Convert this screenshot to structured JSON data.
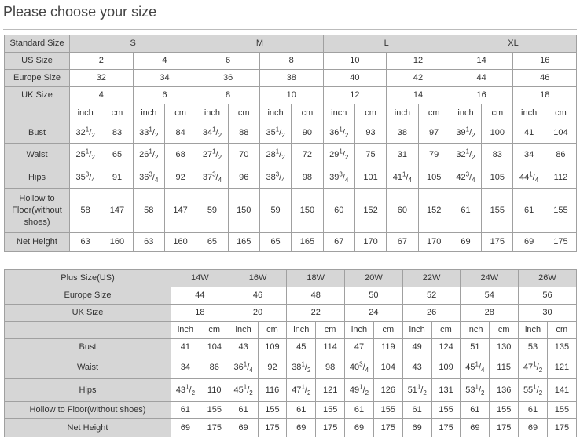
{
  "title": "Please choose your size",
  "table1": {
    "header": {
      "label": "Standard Size",
      "sizes": [
        "S",
        "M",
        "L",
        "XL"
      ]
    },
    "size_rows": [
      {
        "label": "US Size",
        "values": [
          "2",
          "4",
          "6",
          "8",
          "10",
          "12",
          "14",
          "16"
        ]
      },
      {
        "label": "Europe Size",
        "values": [
          "32",
          "34",
          "36",
          "38",
          "40",
          "42",
          "44",
          "46"
        ]
      },
      {
        "label": "UK Size",
        "values": [
          "4",
          "6",
          "8",
          "10",
          "12",
          "14",
          "16",
          "18"
        ]
      }
    ],
    "units": [
      "inch",
      "cm",
      "inch",
      "cm",
      "inch",
      "cm",
      "inch",
      "cm",
      "inch",
      "cm",
      "inch",
      "cm",
      "inch",
      "cm",
      "inch",
      "cm"
    ],
    "measure_rows": [
      {
        "label": "Bust",
        "cells": [
          [
            "32",
            "1",
            "/",
            "2"
          ],
          "83",
          [
            "33",
            "1",
            "/",
            "2"
          ],
          "84",
          [
            "34",
            "1",
            "/",
            "2"
          ],
          "88",
          [
            "35",
            "1",
            "/",
            "2"
          ],
          "90",
          [
            "36",
            "1",
            "/",
            "2"
          ],
          "93",
          "38",
          "97",
          [
            "39",
            "1",
            "/",
            "2"
          ],
          "100",
          "41",
          "104"
        ]
      },
      {
        "label": "Waist",
        "cells": [
          [
            "25",
            "1",
            "/",
            "2"
          ],
          "65",
          [
            "26",
            "1",
            "/",
            "2"
          ],
          "68",
          [
            "27",
            "1",
            "/",
            "2"
          ],
          "70",
          [
            "28",
            "1",
            "/",
            "2"
          ],
          "72",
          [
            "29",
            "1",
            "/",
            "2"
          ],
          "75",
          "31",
          "79",
          [
            "32",
            "1",
            "/",
            "2"
          ],
          "83",
          "34",
          "86"
        ]
      },
      {
        "label": "Hips",
        "cells": [
          [
            "35",
            "3",
            "/",
            "4"
          ],
          "91",
          [
            "36",
            "3",
            "/",
            "4"
          ],
          "92",
          [
            "37",
            "3",
            "/",
            "4"
          ],
          "96",
          [
            "38",
            "3",
            "/",
            "4"
          ],
          "98",
          [
            "39",
            "3",
            "/",
            "4"
          ],
          "101",
          [
            "41",
            "1",
            "/",
            "4"
          ],
          "105",
          [
            "42",
            "3",
            "/",
            "4"
          ],
          "105",
          [
            "44",
            "1",
            "/",
            "4"
          ],
          "112"
        ]
      },
      {
        "label": "Hollow to Floor(without shoes)",
        "cells": [
          "58",
          "147",
          "58",
          "147",
          "59",
          "150",
          "59",
          "150",
          "60",
          "152",
          "60",
          "152",
          "61",
          "155",
          "61",
          "155"
        ]
      },
      {
        "label": "Net Height",
        "cells": [
          "63",
          "160",
          "63",
          "160",
          "65",
          "165",
          "65",
          "165",
          "67",
          "170",
          "67",
          "170",
          "69",
          "175",
          "69",
          "175"
        ]
      }
    ]
  },
  "table2": {
    "header": {
      "label": "Plus Size(US)",
      "sizes": [
        "14W",
        "16W",
        "18W",
        "20W",
        "22W",
        "24W",
        "26W"
      ]
    },
    "size_rows": [
      {
        "label": "Europe Size",
        "values": [
          "44",
          "46",
          "48",
          "50",
          "52",
          "54",
          "56"
        ]
      },
      {
        "label": "UK Size",
        "values": [
          "18",
          "20",
          "22",
          "24",
          "26",
          "28",
          "30"
        ]
      }
    ],
    "units": [
      "inch",
      "cm",
      "inch",
      "cm",
      "inch",
      "cm",
      "inch",
      "cm",
      "inch",
      "cm",
      "inch",
      "cm",
      "inch",
      "cm"
    ],
    "measure_rows": [
      {
        "label": "Bust",
        "cells": [
          "41",
          "104",
          "43",
          "109",
          "45",
          "114",
          "47",
          "119",
          "49",
          "124",
          "51",
          "130",
          "53",
          "135"
        ]
      },
      {
        "label": "Waist",
        "cells": [
          "34",
          "86",
          [
            "36",
            "1",
            "/",
            "4"
          ],
          "92",
          [
            "38",
            "1",
            "/",
            "2"
          ],
          "98",
          [
            "40",
            "3",
            "/",
            "4"
          ],
          "104",
          "43",
          "109",
          [
            "45",
            "1",
            "/",
            "4"
          ],
          "115",
          [
            "47",
            "1",
            "/",
            "2"
          ],
          "121"
        ]
      },
      {
        "label": "Hips",
        "cells": [
          [
            "43",
            "1",
            "/",
            "2"
          ],
          "110",
          [
            "45",
            "1",
            "/",
            "2"
          ],
          "116",
          [
            "47",
            "1",
            "/",
            "2"
          ],
          "121",
          [
            "49",
            "1",
            "/",
            "2"
          ],
          "126",
          [
            "51",
            "1",
            "/",
            "2"
          ],
          "131",
          [
            "53",
            "1",
            "/",
            "2"
          ],
          "136",
          [
            "55",
            "1",
            "/",
            "2"
          ],
          "141"
        ]
      },
      {
        "label": "Hollow to Floor(without shoes)",
        "cells": [
          "61",
          "155",
          "61",
          "155",
          "61",
          "155",
          "61",
          "155",
          "61",
          "155",
          "61",
          "155",
          "61",
          "155"
        ]
      },
      {
        "label": "Net Height",
        "cells": [
          "69",
          "175",
          "69",
          "175",
          "69",
          "175",
          "69",
          "175",
          "69",
          "175",
          "69",
          "175",
          "69",
          "175"
        ]
      }
    ]
  }
}
